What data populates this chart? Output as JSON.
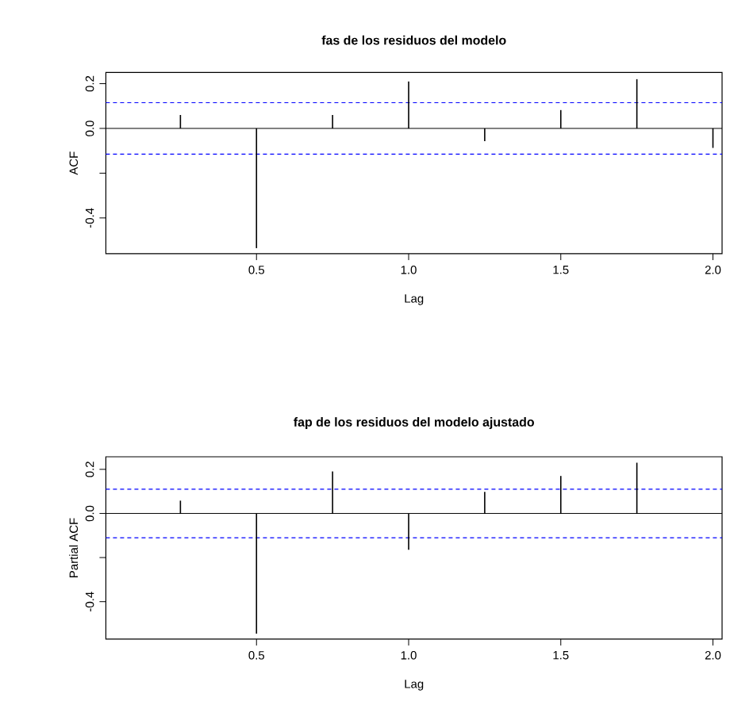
{
  "chart_data": [
    {
      "type": "bar",
      "title": "fas de los residuos del modelo",
      "xlabel": "Lag",
      "ylabel": "ACF",
      "x": [
        0.25,
        0.5,
        0.75,
        1.0,
        1.25,
        1.5,
        1.75,
        2.0
      ],
      "values": [
        0.06,
        -0.535,
        0.06,
        0.21,
        -0.057,
        0.082,
        0.22,
        -0.087
      ],
      "color": "#000000",
      "xlim": [
        0.005,
        2.03
      ],
      "ylim": [
        -0.56,
        0.25
      ],
      "xticks": [
        {
          "value": 0.5,
          "label": "0.5"
        },
        {
          "value": 1.0,
          "label": "1.0"
        },
        {
          "value": 1.5,
          "label": "1.5"
        },
        {
          "value": 2.0,
          "label": "2.0"
        }
      ],
      "yticks": [
        {
          "value": -0.4,
          "label": "-0.4"
        },
        {
          "value": -0.2,
          "label": null
        },
        {
          "value": 0.0,
          "label": "0.0"
        },
        {
          "value": 0.2,
          "label": "0.2"
        }
      ],
      "ref_lines": [
        {
          "axis": "y",
          "value": 0.115,
          "color": "#0000ff",
          "line_style": "dashed"
        },
        {
          "axis": "y",
          "value": -0.115,
          "color": "#0000ff",
          "line_style": "dashed"
        }
      ]
    },
    {
      "type": "bar",
      "title": "fap de los residuos del modelo ajustado",
      "xlabel": "Lag",
      "ylabel": "Partial ACF",
      "x": [
        0.25,
        0.5,
        0.75,
        1.0,
        1.25,
        1.5,
        1.75
      ],
      "values": [
        0.058,
        -0.545,
        0.19,
        -0.165,
        0.098,
        0.17,
        0.23
      ],
      "color": "#000000",
      "xlim": [
        0.005,
        2.03
      ],
      "ylim": [
        -0.57,
        0.257
      ],
      "xticks": [
        {
          "value": 0.5,
          "label": "0.5"
        },
        {
          "value": 1.0,
          "label": "1.0"
        },
        {
          "value": 1.5,
          "label": "1.5"
        },
        {
          "value": 2.0,
          "label": "2.0"
        }
      ],
      "yticks": [
        {
          "value": -0.4,
          "label": "-0.4"
        },
        {
          "value": -0.2,
          "label": null
        },
        {
          "value": 0.0,
          "label": "0.0"
        },
        {
          "value": 0.2,
          "label": "0.2"
        }
      ],
      "ref_lines": [
        {
          "axis": "y",
          "value": 0.11,
          "color": "#0000ff",
          "line_style": "dashed"
        },
        {
          "axis": "y",
          "value": -0.11,
          "color": "#0000ff",
          "line_style": "dashed"
        }
      ]
    }
  ]
}
